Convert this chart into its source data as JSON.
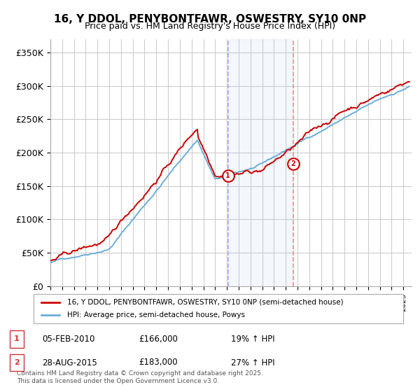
{
  "title": "16, Y DDOL, PENYBONTFAWR, OSWESTRY, SY10 0NP",
  "subtitle": "Price paid vs. HM Land Registry's House Price Index (HPI)",
  "ylabel_ticks": [
    "£0",
    "£50K",
    "£100K",
    "£150K",
    "£200K",
    "£250K",
    "£300K",
    "£350K"
  ],
  "ylim": [
    0,
    370000
  ],
  "ytick_vals": [
    0,
    50000,
    100000,
    150000,
    200000,
    250000,
    300000,
    350000
  ],
  "xstart_year": 1995,
  "xend_year": 2025,
  "sale1_date": 2010.09,
  "sale1_price": 166000,
  "sale1_label": "1",
  "sale1_text": "05-FEB-2010",
  "sale1_pct": "19% ↑ HPI",
  "sale2_date": 2015.65,
  "sale2_price": 183000,
  "sale2_label": "2",
  "sale2_text": "28-AUG-2015",
  "sale2_pct": "27% ↑ HPI",
  "hpi_color": "#6baed6",
  "price_color": "#cc0000",
  "vline1_color": "#aec7e8",
  "vline2_color": "#ff9999",
  "legend_label1": "16, Y DDOL, PENYBONTFAWR, OSWESTRY, SY10 0NP (semi-detached house)",
  "legend_label2": "HPI: Average price, semi-detached house, Powys",
  "footer": "Contains HM Land Registry data © Crown copyright and database right 2025.\nThis data is licensed under the Open Government Licence v3.0.",
  "background_color": "#ffffff",
  "grid_color": "#cccccc"
}
